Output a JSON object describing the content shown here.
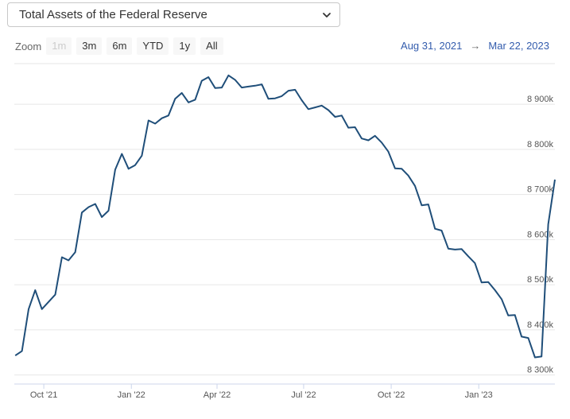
{
  "selector": {
    "selected": "Total Assets of the Federal Reserve"
  },
  "zoom": {
    "label": "Zoom",
    "buttons": [
      {
        "label": "1m",
        "disabled": true
      },
      {
        "label": "3m",
        "disabled": false
      },
      {
        "label": "6m",
        "disabled": false
      },
      {
        "label": "YTD",
        "disabled": false
      },
      {
        "label": "1y",
        "disabled": false
      },
      {
        "label": "All",
        "disabled": false
      }
    ]
  },
  "range": {
    "from": "Aug 31, 2021",
    "arrow": "→",
    "to": "Mar 22, 2023"
  },
  "colors": {
    "line": "#1f4e79",
    "grid": "#e6e6e6",
    "range_text": "#335cad"
  },
  "icons": {
    "dropdown": "chevron-down-icon"
  },
  "chart_data": {
    "type": "line",
    "title": "",
    "xlabel": "",
    "ylabel": "",
    "x_ticks": [
      "Oct '21",
      "Jan '22",
      "Apr '22",
      "Jul '22",
      "Oct '22",
      "Jan '23"
    ],
    "y_ticks": [
      "8 300k",
      "8 400k",
      "8 500k",
      "8 600k",
      "8 700k",
      "8 800k",
      "8 900k"
    ],
    "ylim": [
      8280000,
      8990000
    ],
    "xlim": [
      "2021-08-31",
      "2023-03-22"
    ],
    "grid": true,
    "series": [
      {
        "x": [
          "2021-09-01",
          "2021-09-08",
          "2021-09-15",
          "2021-09-22",
          "2021-09-29",
          "2021-10-06",
          "2021-10-13",
          "2021-10-20",
          "2021-10-27",
          "2021-11-03",
          "2021-11-10",
          "2021-11-17",
          "2021-11-24",
          "2021-12-01",
          "2021-12-08",
          "2021-12-15",
          "2021-12-22",
          "2021-12-29",
          "2022-01-05",
          "2022-01-12",
          "2022-01-19",
          "2022-01-26",
          "2022-02-02",
          "2022-02-09",
          "2022-02-16",
          "2022-02-23",
          "2022-03-02",
          "2022-03-09",
          "2022-03-16",
          "2022-03-23",
          "2022-03-30",
          "2022-04-06",
          "2022-04-13",
          "2022-04-20",
          "2022-04-27",
          "2022-05-04",
          "2022-05-11",
          "2022-05-18",
          "2022-05-25",
          "2022-06-01",
          "2022-06-08",
          "2022-06-15",
          "2022-06-22",
          "2022-06-29",
          "2022-07-06",
          "2022-07-13",
          "2022-07-20",
          "2022-07-27",
          "2022-08-03",
          "2022-08-10",
          "2022-08-17",
          "2022-08-24",
          "2022-08-31",
          "2022-09-07",
          "2022-09-14",
          "2022-09-21",
          "2022-09-28",
          "2022-10-05",
          "2022-10-12",
          "2022-10-19",
          "2022-10-26",
          "2022-11-02",
          "2022-11-09",
          "2022-11-16",
          "2022-11-23",
          "2022-11-30",
          "2022-12-07",
          "2022-12-14",
          "2022-12-21",
          "2022-12-28",
          "2023-01-04",
          "2023-01-11",
          "2023-01-18",
          "2023-01-25",
          "2023-02-01",
          "2023-02-08",
          "2023-02-15",
          "2023-02-22",
          "2023-03-01",
          "2023-03-08",
          "2023-03-15",
          "2023-03-22"
        ],
        "values": [
          8343000,
          8353000,
          8446000,
          8488000,
          8446000,
          8462000,
          8478000,
          8561000,
          8554000,
          8572000,
          8660000,
          8672000,
          8679000,
          8650000,
          8664000,
          8755000,
          8790000,
          8757000,
          8765000,
          8786000,
          8864000,
          8857000,
          8869000,
          8875000,
          8912000,
          8925000,
          8904000,
          8910000,
          8952000,
          8960000,
          8936000,
          8937000,
          8964000,
          8954000,
          8937000,
          8939000,
          8941000,
          8944000,
          8912000,
          8913000,
          8918000,
          8930000,
          8932000,
          8909000,
          8889000,
          8893000,
          8897000,
          8887000,
          8872000,
          8875000,
          8848000,
          8849000,
          8824000,
          8820000,
          8830000,
          8815000,
          8795000,
          8758000,
          8757000,
          8742000,
          8719000,
          8676000,
          8678000,
          8624000,
          8620000,
          8580000,
          8578000,
          8579000,
          8563000,
          8548000,
          8505000,
          8506000,
          8488000,
          8468000,
          8432000,
          8433000,
          8385000,
          8382000,
          8339000,
          8341000,
          8634000,
          8733000
        ]
      }
    ]
  }
}
